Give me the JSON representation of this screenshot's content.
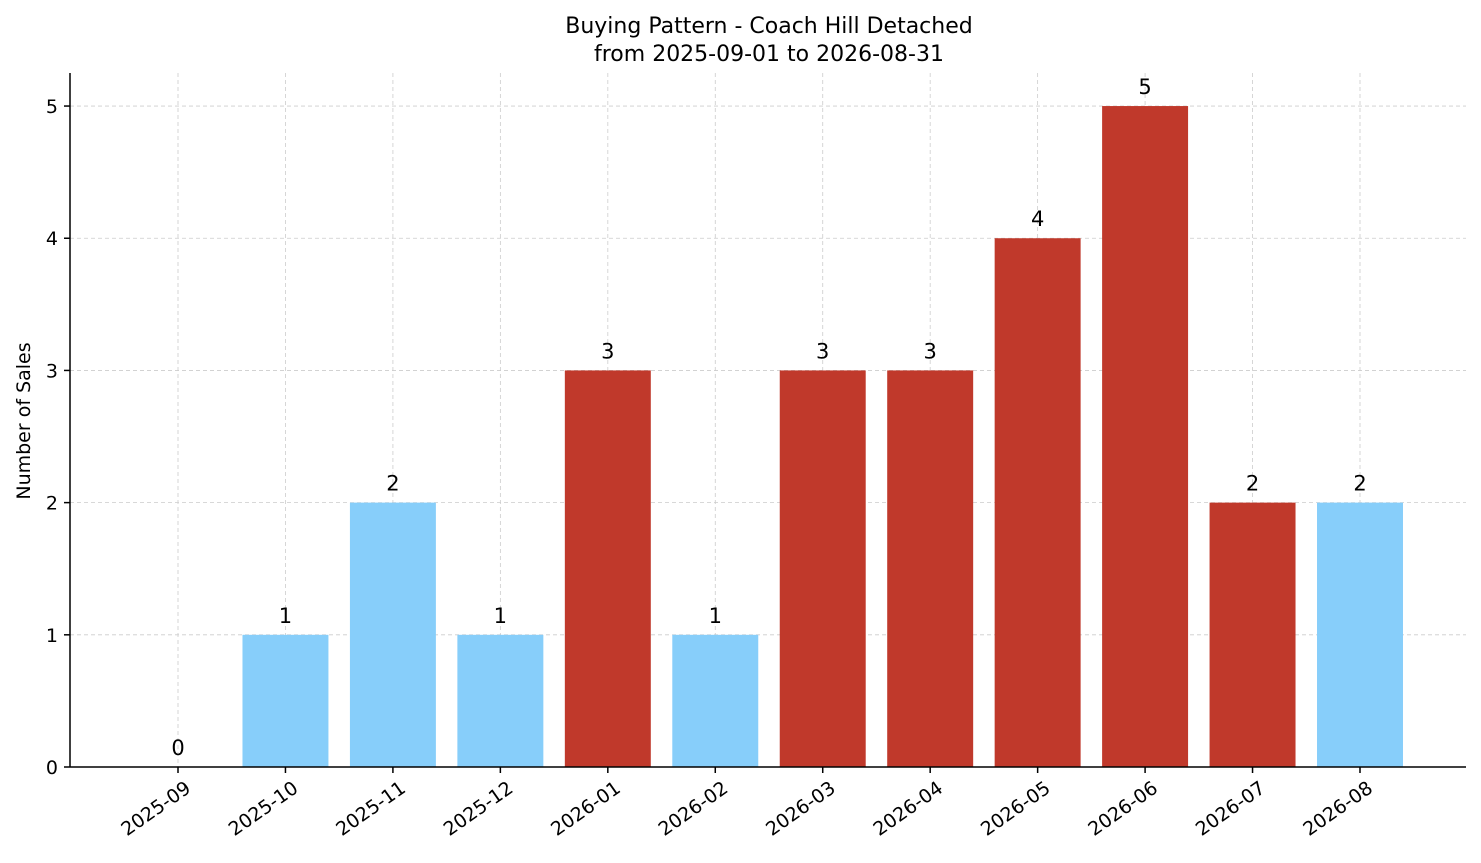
{
  "chart_data": {
    "type": "bar",
    "title": "Buying Pattern - Coach Hill Detached",
    "subtitle": "from 2025-09-01 to 2026-08-31",
    "xlabel": "",
    "ylabel": "Number of Sales",
    "categories": [
      "2025-09",
      "2025-10",
      "2025-11",
      "2025-12",
      "2026-01",
      "2026-02",
      "2026-03",
      "2026-04",
      "2026-05",
      "2026-06",
      "2026-07",
      "2026-08"
    ],
    "values": [
      0,
      1,
      2,
      1,
      3,
      1,
      3,
      3,
      4,
      5,
      2,
      2
    ],
    "bar_colors": [
      "#87CEFA",
      "#87CEFA",
      "#87CEFA",
      "#87CEFA",
      "#C0392B",
      "#87CEFA",
      "#C0392B",
      "#C0392B",
      "#C0392B",
      "#C0392B",
      "#C0392B",
      "#87CEFA"
    ],
    "yticks": [
      0,
      1,
      2,
      3,
      4,
      5
    ],
    "ylim": [
      0,
      5.25
    ],
    "grid": true,
    "legend": "none"
  }
}
